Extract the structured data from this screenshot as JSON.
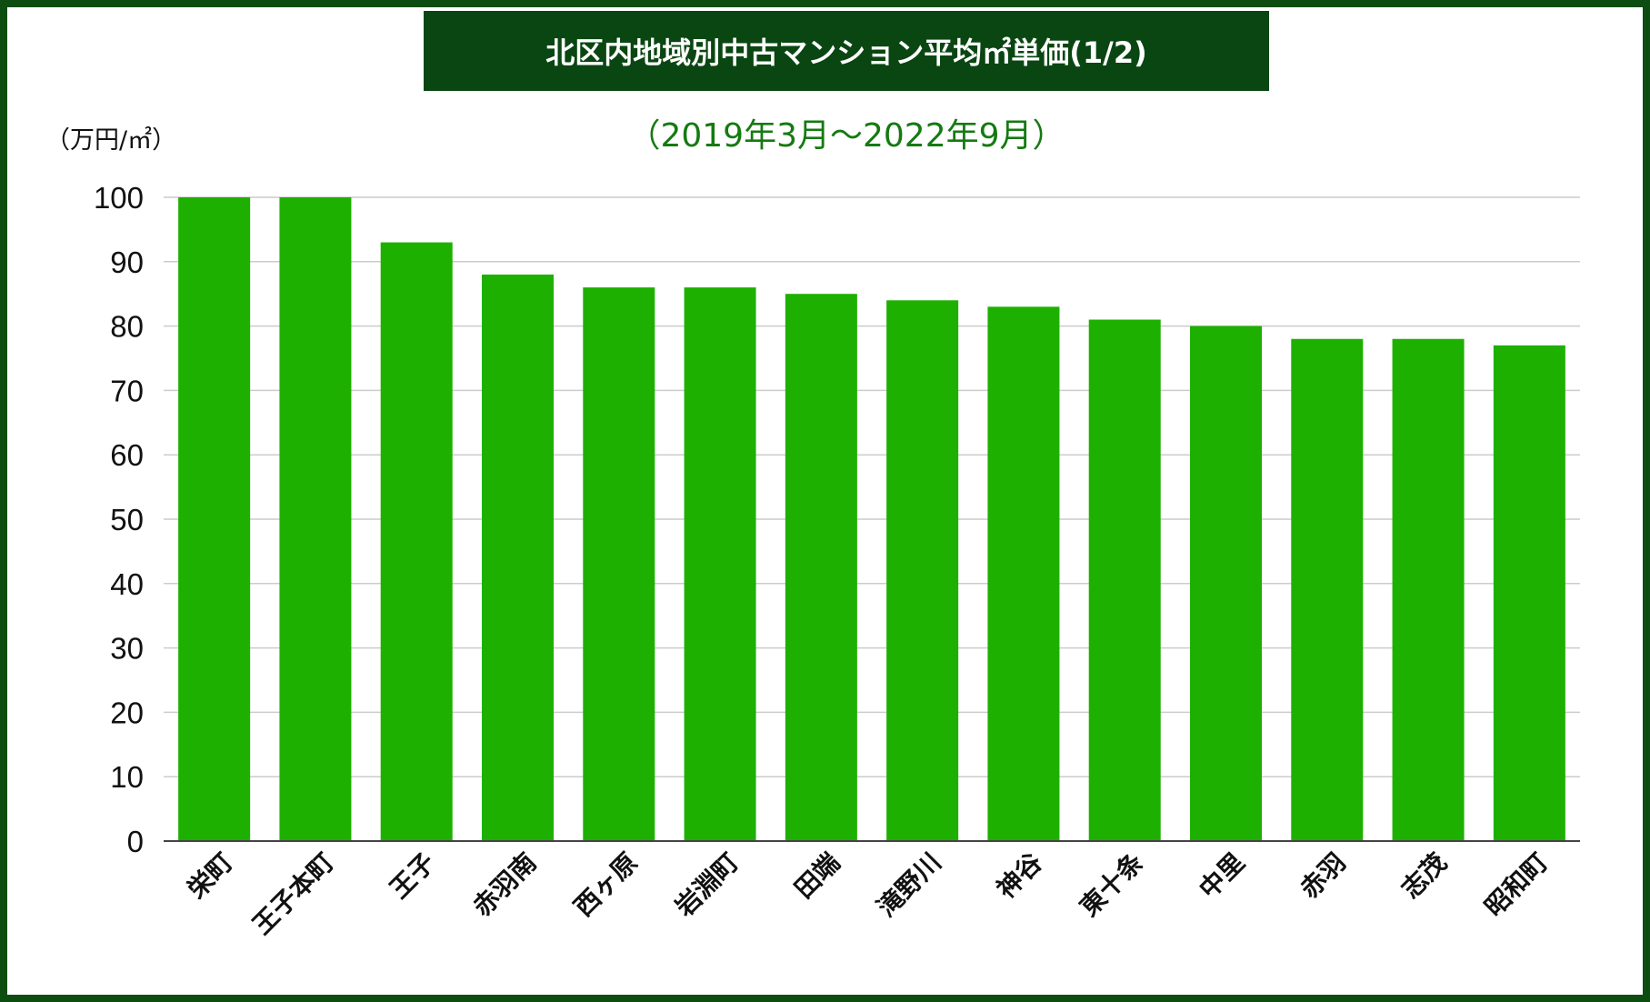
{
  "title": "北区内地域別中古マンション平均㎡単価(1/2)",
  "subtitle": "（2019年3月〜2022年9月）",
  "unit_label": "（万円/㎡）",
  "colors": {
    "frame": "#0e4d12",
    "title_bg": "#0a4612",
    "subtitle": "#157a11",
    "bar": "#1eb000",
    "grid": "#cccccc"
  },
  "chart_data": {
    "type": "bar",
    "title": "北区内地域別中古マンション平均㎡単価(1/2)",
    "subtitle": "（2019年3月〜2022年9月）",
    "ylabel": "（万円/㎡）",
    "xlabel": "",
    "ylim": [
      0,
      100
    ],
    "yticks": [
      0,
      10,
      20,
      30,
      40,
      50,
      60,
      70,
      80,
      90,
      100
    ],
    "grid": true,
    "legend": "none",
    "categories": [
      "栄町",
      "王子本町",
      "王子",
      "赤羽南",
      "西ヶ原",
      "岩淵町",
      "田端",
      "滝野川",
      "神谷",
      "東十条",
      "中里",
      "赤羽",
      "志茂",
      "昭和町"
    ],
    "values": [
      100,
      100,
      93,
      88,
      86,
      86,
      85,
      84,
      83,
      81,
      80,
      78,
      78,
      77
    ]
  }
}
